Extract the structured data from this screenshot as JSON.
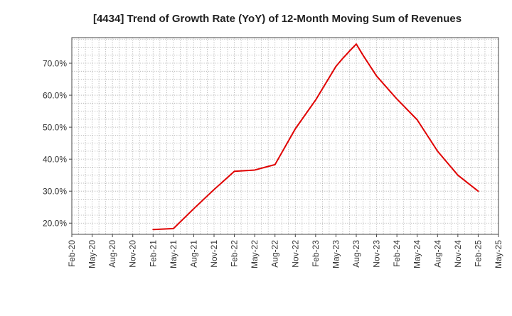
{
  "chart_data": {
    "type": "line",
    "title": "[4434]  Trend of Growth Rate (YoY) of 12-Month Moving Sum of Revenues",
    "xlabel": "",
    "ylabel": "",
    "x_ticks": [
      "Feb-20",
      "May-20",
      "Aug-20",
      "Nov-20",
      "Feb-21",
      "May-21",
      "Aug-21",
      "Nov-21",
      "Feb-22",
      "May-22",
      "Aug-22",
      "Nov-22",
      "Feb-23",
      "May-23",
      "Aug-23",
      "Nov-23",
      "Feb-24",
      "May-24",
      "Aug-24",
      "Nov-24",
      "Feb-25",
      "May-25"
    ],
    "y_ticks": [
      "20.0%",
      "30.0%",
      "40.0%",
      "50.0%",
      "60.0%",
      "70.0%"
    ],
    "y_tick_values": [
      20,
      30,
      40,
      50,
      60,
      70
    ],
    "ylim": [
      16.5,
      78
    ],
    "grid": true,
    "line_color": "#e00000",
    "series": [
      {
        "name": "",
        "x": [
          "Feb-21",
          "May-21",
          "Aug-21",
          "Nov-21",
          "Feb-22",
          "May-22",
          "Aug-22",
          "Nov-22",
          "Feb-23",
          "May-23",
          "Jun-23",
          "Jul-23",
          "Aug-23",
          "Sep-23",
          "Nov-23",
          "Feb-24",
          "May-24",
          "Aug-24",
          "Nov-24",
          "Feb-25"
        ],
        "values": [
          18.0,
          18.3,
          24.5,
          30.5,
          36.2,
          36.6,
          38.3,
          49.5,
          58.5,
          69.0,
          71.5,
          73.8,
          76.0,
          72.5,
          66.0,
          58.8,
          52.3,
          42.5,
          35.0,
          30.0
        ]
      }
    ]
  }
}
